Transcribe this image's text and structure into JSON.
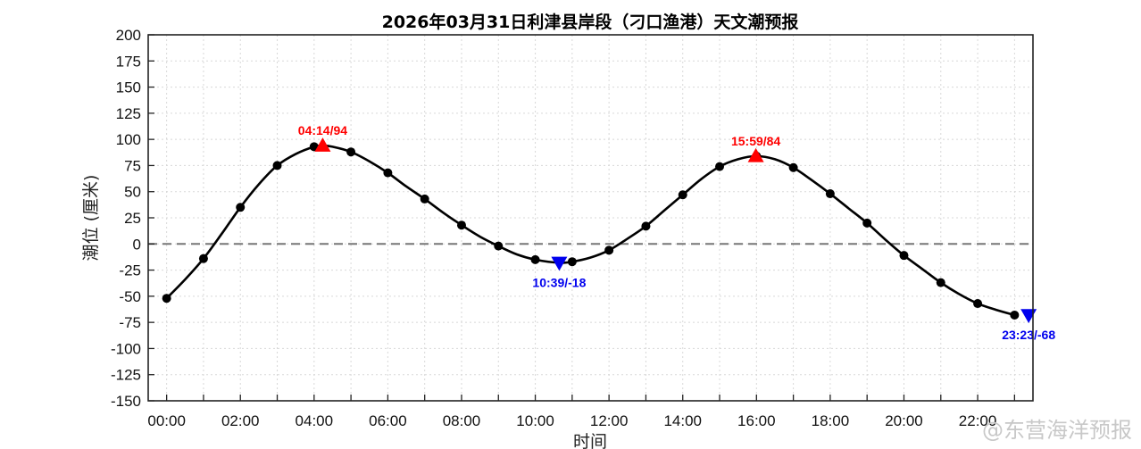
{
  "chart_data": {
    "type": "line",
    "title": "2026年03月31日利津县岸段（刁口渔港）天文潮预报",
    "xlabel": "时间",
    "ylabel": "潮位 (厘米)",
    "xlim": [
      -0.5,
      23.5
    ],
    "ylim": [
      -150,
      200
    ],
    "x_ticks": [
      0,
      2,
      4,
      6,
      8,
      10,
      12,
      14,
      16,
      18,
      20,
      22
    ],
    "x_tick_labels": [
      "00:00",
      "02:00",
      "04:00",
      "06:00",
      "08:00",
      "10:00",
      "12:00",
      "14:00",
      "16:00",
      "18:00",
      "20:00",
      "22:00"
    ],
    "y_ticks": [
      -150,
      -125,
      -100,
      -75,
      -50,
      -25,
      0,
      25,
      50,
      75,
      100,
      125,
      150,
      175,
      200
    ],
    "grid": true,
    "zero_line": true,
    "hours": [
      0,
      1,
      2,
      3,
      4,
      5,
      6,
      7,
      8,
      9,
      10,
      11,
      12,
      13,
      14,
      15,
      16,
      17,
      18,
      19,
      20,
      21,
      22,
      23
    ],
    "hourly_values": [
      -52,
      -14,
      35,
      75,
      93,
      88,
      68,
      43,
      18,
      -2,
      -15,
      -17,
      -6,
      17,
      47,
      74,
      84,
      73,
      48,
      20,
      -11,
      -37,
      -57,
      -68
    ],
    "curve_points": [
      [
        0,
        -52
      ],
      [
        0.5,
        -34
      ],
      [
        1,
        -14
      ],
      [
        1.5,
        10
      ],
      [
        2,
        35
      ],
      [
        2.5,
        57
      ],
      [
        3,
        75
      ],
      [
        3.5,
        86
      ],
      [
        4,
        93
      ],
      [
        4.233,
        94
      ],
      [
        4.5,
        93
      ],
      [
        5,
        88
      ],
      [
        5.5,
        79
      ],
      [
        6,
        68
      ],
      [
        6.5,
        55
      ],
      [
        7,
        43
      ],
      [
        7.5,
        30
      ],
      [
        8,
        18
      ],
      [
        8.5,
        7
      ],
      [
        9,
        -2
      ],
      [
        9.5,
        -10
      ],
      [
        10,
        -15
      ],
      [
        10.65,
        -18
      ],
      [
        11,
        -17
      ],
      [
        11.5,
        -13
      ],
      [
        12,
        -6
      ],
      [
        12.5,
        5
      ],
      [
        13,
        17
      ],
      [
        13.5,
        32
      ],
      [
        14,
        47
      ],
      [
        14.5,
        62
      ],
      [
        15,
        74
      ],
      [
        15.5,
        81
      ],
      [
        15.983,
        84
      ],
      [
        16.5,
        81
      ],
      [
        17,
        73
      ],
      [
        17.5,
        61
      ],
      [
        18,
        48
      ],
      [
        18.5,
        34
      ],
      [
        19,
        20
      ],
      [
        19.5,
        4
      ],
      [
        20,
        -11
      ],
      [
        20.5,
        -24
      ],
      [
        21,
        -37
      ],
      [
        21.5,
        -48
      ],
      [
        22,
        -57
      ],
      [
        22.5,
        -63
      ],
      [
        23,
        -68
      ]
    ],
    "extremes": [
      {
        "kind": "high",
        "time": 4.233,
        "value": 94,
        "label": "04:14/94",
        "color": "#ff0000"
      },
      {
        "kind": "low",
        "time": 10.65,
        "value": -18,
        "label": "10:39/-18",
        "color": "#0000ee"
      },
      {
        "kind": "high",
        "time": 15.983,
        "value": 84,
        "label": "15:59/84",
        "color": "#ff0000"
      },
      {
        "kind": "low",
        "time": 23.383,
        "value": -68,
        "label": "23:23/-68",
        "color": "#0000ee"
      }
    ],
    "colors": {
      "line": "#000000",
      "high": "#ff0000",
      "low": "#0000ee",
      "zero": "#777777",
      "grid": "#d8d8d8"
    }
  },
  "watermark": "@东营海洋预报"
}
